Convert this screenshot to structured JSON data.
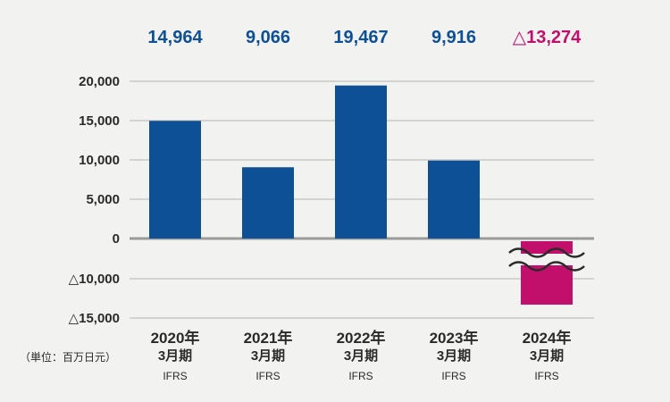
{
  "chart_data": {
    "type": "bar",
    "categories": [
      {
        "year": "2020年",
        "period": "3月期",
        "standard": "IFRS"
      },
      {
        "year": "2021年",
        "period": "3月期",
        "standard": "IFRS"
      },
      {
        "year": "2022年",
        "period": "3月期",
        "standard": "IFRS"
      },
      {
        "year": "2023年",
        "period": "3月期",
        "standard": "IFRS"
      },
      {
        "year": "2024年",
        "period": "3月期",
        "standard": "IFRS"
      }
    ],
    "values": [
      14964,
      9066,
      19467,
      9916,
      -13274
    ],
    "value_labels": [
      "14,964",
      "9,066",
      "19,467",
      "9,916",
      "△13,274"
    ],
    "y_ticks": [
      {
        "value": 20000,
        "label": "20,000"
      },
      {
        "value": 15000,
        "label": "15,000"
      },
      {
        "value": 10000,
        "label": "10,000"
      },
      {
        "value": 5000,
        "label": "5,000"
      },
      {
        "value": 0,
        "label": "0"
      },
      {
        "value": -10000,
        "label": "△10,000"
      },
      {
        "value": -15000,
        "label": "△15,000"
      }
    ],
    "axis_break": {
      "between": [
        -10000,
        0
      ]
    },
    "unit_label": "（単位：百万日元）",
    "grid": true,
    "colors": {
      "positive": "#0e5096",
      "negative": "#c20f6b",
      "grid": "#b4b4b4",
      "zero_line": "#9a9a9a",
      "text": "#2a2a2a",
      "background": "#f2f2f0"
    }
  }
}
